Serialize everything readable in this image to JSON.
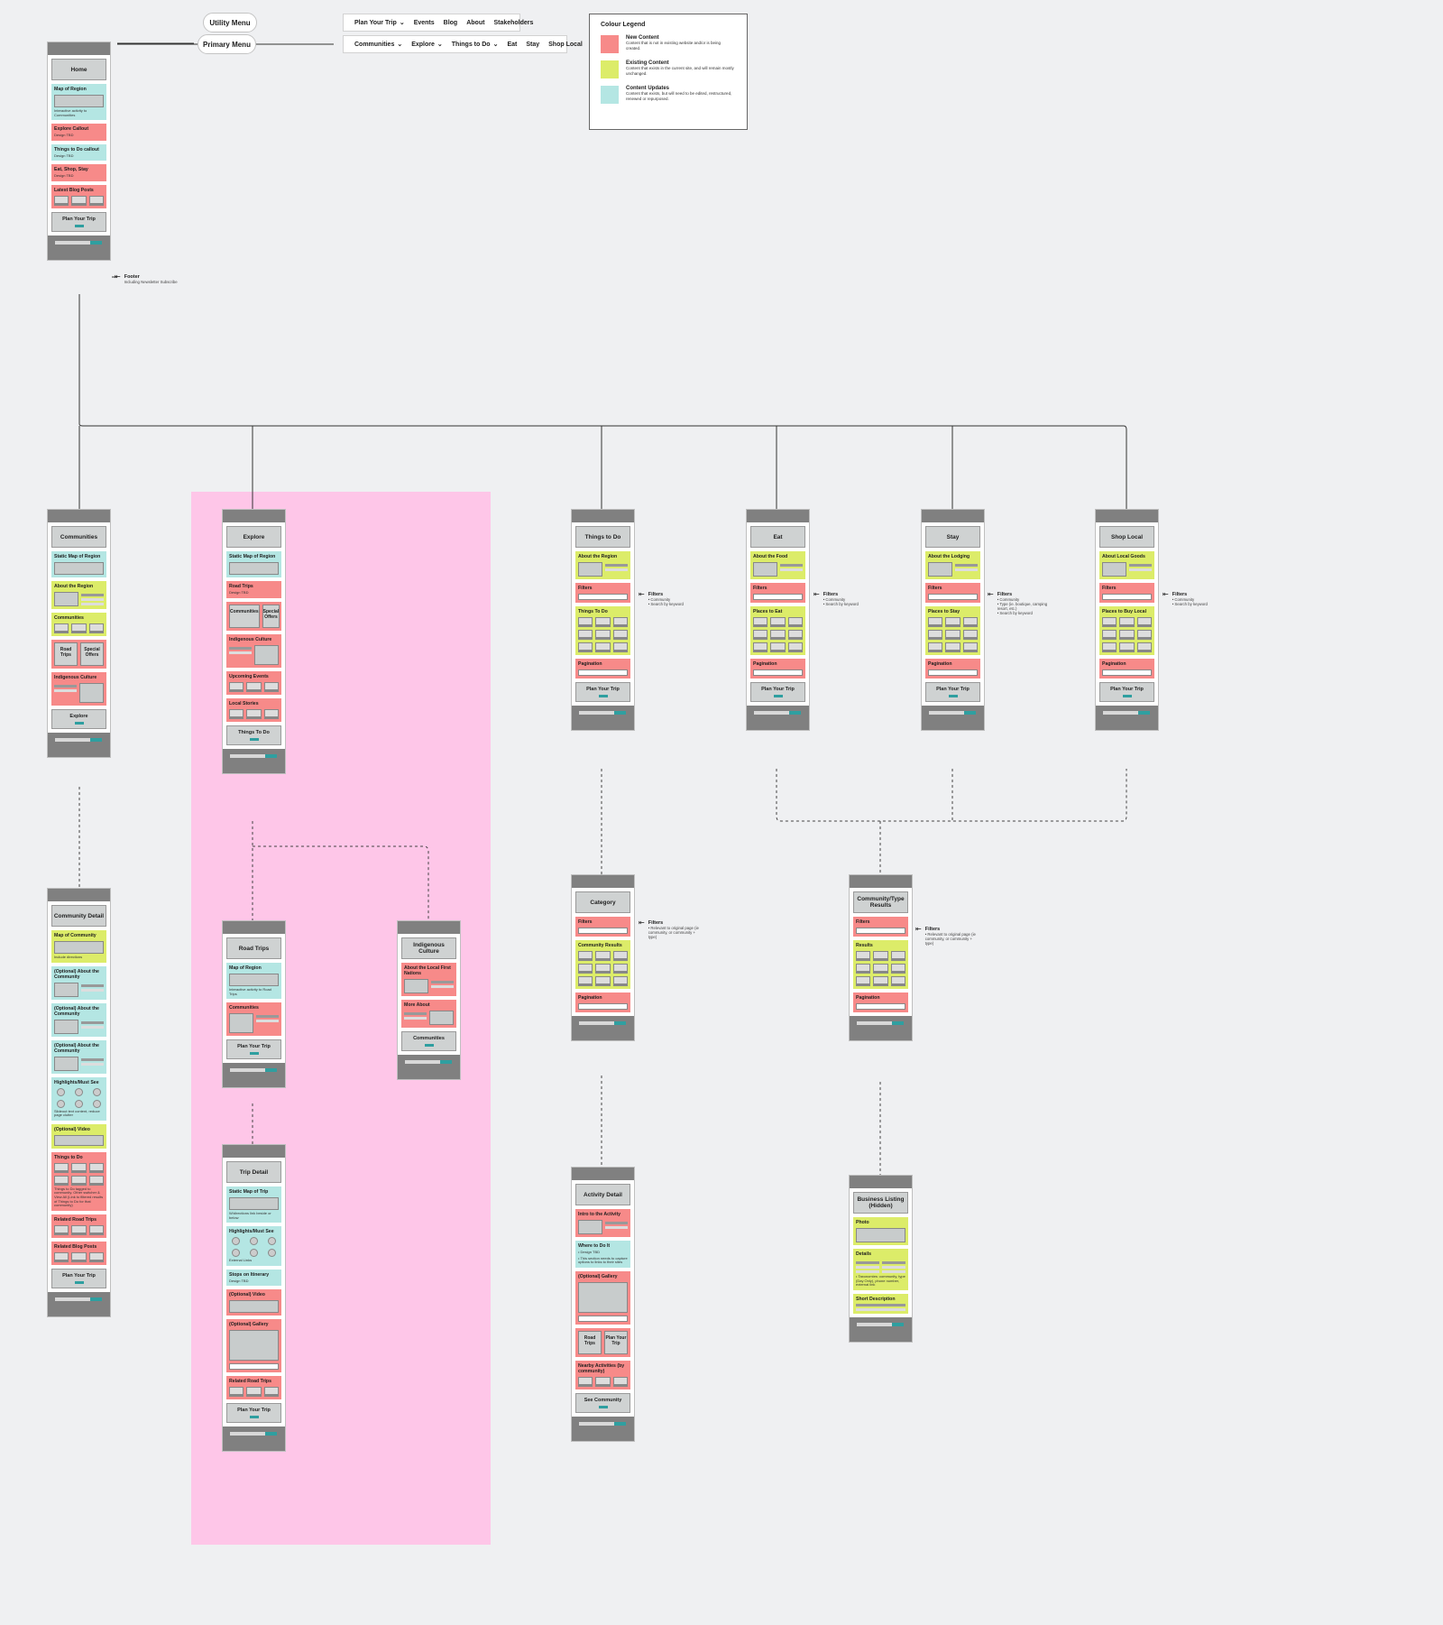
{
  "menus": {
    "utility_label": "Utility Menu",
    "primary_label": "Primary Menu",
    "utility_items": [
      "Plan Your Trip",
      "Events",
      "Blog",
      "About",
      "Stakeholders"
    ],
    "primary_items": [
      "Communities",
      "Explore",
      "Things to Do",
      "Eat",
      "Stay",
      "Shop Local"
    ]
  },
  "legend": {
    "title": "Colour Legend",
    "items": [
      {
        "name": "New Content",
        "desc": "Content that is not in existing website and/or is being created.",
        "color": "#f78a89"
      },
      {
        "name": "Existing Content",
        "desc": "Content that exists in the current site, and will remain mostly unchanged.",
        "color": "#dcec69"
      },
      {
        "name": "Content Updates",
        "desc": "Content that exists, but will need to be edited, restructured, renewed or repurposed.",
        "color": "#b4e6e3"
      }
    ]
  },
  "colors": {
    "new": "#f78a89",
    "existing": "#dcec69",
    "update": "#b4e6e3",
    "explore_zone": "#fec6e8"
  },
  "footer_note": {
    "title": "Footer",
    "note": "Including Newsletter Subscribe"
  },
  "pages": {
    "home": {
      "title": "Home",
      "sections": [
        "Map of Region",
        "Explore Callout",
        "Things to Do callout",
        "Eat, Shop, Stay",
        "Latest Blog Posts"
      ],
      "notes": [
        "Interactive activity to Communities",
        "Design TBD",
        "Design TBD",
        "Design TBD"
      ],
      "cta": "Plan Your Trip"
    },
    "communities": {
      "title": "Communities",
      "sections": [
        "Static Map of Region",
        "About the Region",
        "Communities",
        "Indigenous Culture"
      ],
      "pair": [
        "Road Trips",
        "Special Offers"
      ],
      "cta": "Explore"
    },
    "explore": {
      "title": "Explore",
      "sections": [
        "Static Map of Region",
        "Road Trips",
        "Indigenous Culture",
        "Upcoming Events",
        "Local Stories"
      ],
      "pair": [
        "Communities",
        "Special Offers"
      ],
      "notes": [
        "Design TBD"
      ],
      "cta": "Things To Do"
    },
    "things": {
      "title": "Things to Do",
      "sections": [
        "About the Region",
        "Filters",
        "Things To Do",
        "Pagination"
      ],
      "cta": "Plan Your Trip"
    },
    "eat": {
      "title": "Eat",
      "sections": [
        "About the Food",
        "Filters",
        "Places to Eat",
        "Pagination"
      ],
      "cta": "Plan Your Trip"
    },
    "stay": {
      "title": "Stay",
      "sections": [
        "About the Lodging",
        "Filters",
        "Places to Stay",
        "Pagination"
      ],
      "cta": "Plan Your Trip"
    },
    "shop": {
      "title": "Shop Local",
      "sections": [
        "About Local Goods",
        "Filters",
        "Places to Buy Local",
        "Pagination"
      ],
      "cta": "Plan Your Trip"
    },
    "community_detail": {
      "title": "Community Detail",
      "sections": [
        "Map of Community",
        "(Optional) About the Community",
        "(Optional) About the Community",
        "(Optional) About the Community",
        "Highlights/Must See",
        "(Optional) Video",
        "Things to Do",
        "Related Road Trips",
        "Related Blog Posts"
      ],
      "notes": [
        "Include directions",
        "Slideout text content, reduce page clutter",
        "Things to Do tagged to community. Other switcher & View All (Link to filtered results of Things to Do for that community)"
      ],
      "cta": "Plan Your Trip"
    },
    "road_trips": {
      "title": "Road Trips",
      "sections": [
        "Map of Region",
        "Communities"
      ],
      "notes": [
        "Interactive activity to Road Trips"
      ],
      "cta": "Plan Your Trip"
    },
    "indigenous": {
      "title": "Indigenous Culture",
      "sections": [
        "About the Local First Nations",
        "More About"
      ],
      "cta": "Communities"
    },
    "trip_detail": {
      "title": "Trip Detail",
      "sections": [
        "Static Map of Trip",
        "Highlights/Must See",
        "Stops on Itinerary",
        "(Optional) Video",
        "(Optional) Gallery",
        "Related Road Trips"
      ],
      "notes": [
        "W/directions link beside or below",
        "External Links",
        "Design TBD"
      ],
      "cta": "Plan Your Trip"
    },
    "category": {
      "title": "Category",
      "sections": [
        "Filters",
        "Community Results",
        "Pagination"
      ]
    },
    "activity": {
      "title": "Activity Detail",
      "sections": [
        "Intro to the Activity",
        "Where to Do It",
        "(Optional) Gallery",
        "Nearby Activities (by community)"
      ],
      "pair": [
        "Road Trips",
        "Plan Your Trip"
      ],
      "notes": [
        "Design TBD",
        "This section needs to capture options to links to their sites"
      ],
      "cta": "See Community"
    },
    "ctype": {
      "title": "Community/Type Results",
      "sections": [
        "Filters",
        "Results",
        "Pagination"
      ]
    },
    "business": {
      "title": "Business Listing (Hidden)",
      "sections": [
        "Photo",
        "Details",
        "Short Description"
      ],
      "notes": [
        "Taxonomies: community, type (Day Only), phone number, external link"
      ]
    }
  },
  "filters": {
    "title": "Filters",
    "things": [
      "Community",
      "Search by keyword"
    ],
    "eat": [
      "Community",
      "Search by keyword"
    ],
    "stay": [
      "Community",
      "Type (ie. boutique, camping resort, etc.)",
      "Search by keyword"
    ],
    "shop": [
      "Community",
      "Search by keyword"
    ],
    "category": [
      "Relevant to original page (ie community, or community + type)"
    ],
    "ctype": [
      "Relevant to original page (ie community, or community + type)"
    ]
  }
}
